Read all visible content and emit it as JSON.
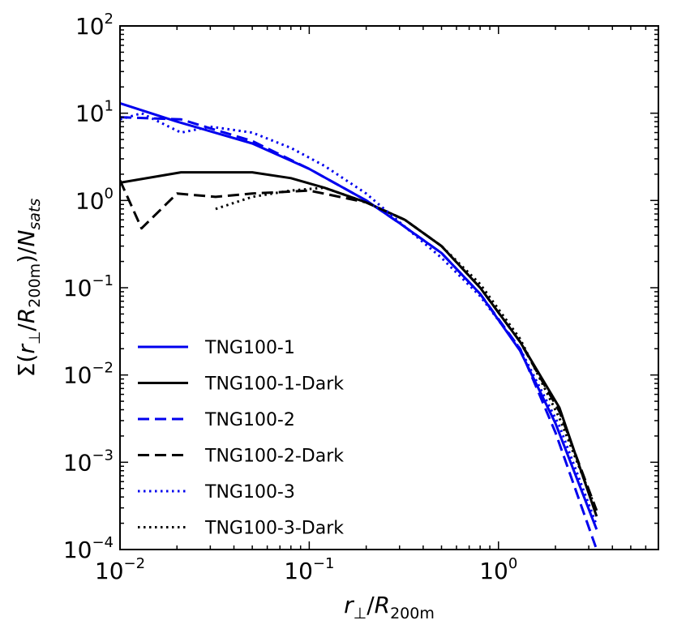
{
  "chart_data": {
    "type": "line",
    "xscale": "log",
    "yscale": "log",
    "xlim": [
      0.01,
      7
    ],
    "ylim": [
      0.0001,
      100
    ],
    "xlabel": {
      "base": "r",
      "sub1": "⊥",
      "slash": "/",
      "r": "R",
      "sub2": "200m"
    },
    "ylabel": {
      "sigma": "Σ(",
      "r": "r",
      "sub1": "⊥",
      "slash": "/",
      "R": "R",
      "sub2": "200m",
      "close": ")/",
      "N": "N",
      "sub3": "sats"
    },
    "x_ticks": [
      {
        "value": 0.01,
        "base": "10",
        "exp": "−2"
      },
      {
        "value": 0.1,
        "base": "10",
        "exp": "−1"
      },
      {
        "value": 1,
        "base": "10",
        "exp": "0"
      }
    ],
    "y_ticks": [
      {
        "value": 0.0001,
        "base": "10",
        "exp": "−4"
      },
      {
        "value": 0.001,
        "base": "10",
        "exp": "−3"
      },
      {
        "value": 0.01,
        "base": "10",
        "exp": "−2"
      },
      {
        "value": 0.1,
        "base": "10",
        "exp": "−1"
      },
      {
        "value": 1,
        "base": "10",
        "exp": "0"
      },
      {
        "value": 10,
        "base": "10",
        "exp": "1"
      },
      {
        "value": 100,
        "base": "10",
        "exp": "2"
      }
    ],
    "grid": false,
    "legend_position": "lower-left",
    "series": [
      {
        "name": "TNG100-1",
        "color": "#0000ee",
        "dash": "solid",
        "x": [
          0.01,
          0.02,
          0.05,
          0.1,
          0.2,
          0.3,
          0.5,
          0.8,
          1.3,
          2.0,
          3.3
        ],
        "y": [
          13,
          8,
          4.5,
          2.3,
          1.0,
          0.55,
          0.25,
          0.085,
          0.019,
          0.0028,
          0.00017
        ]
      },
      {
        "name": "TNG100-1-Dark",
        "color": "#000000",
        "dash": "solid",
        "x": [
          0.01,
          0.021,
          0.05,
          0.08,
          0.12,
          0.2,
          0.32,
          0.5,
          0.8,
          1.3,
          2.1,
          3.3
        ],
        "y": [
          1.6,
          2.1,
          2.1,
          1.8,
          1.4,
          0.95,
          0.6,
          0.3,
          0.1,
          0.024,
          0.0042,
          0.00024
        ]
      },
      {
        "name": "TNG100-2",
        "color": "#0000ee",
        "dash": "dashed",
        "x": [
          0.01,
          0.021,
          0.05,
          0.1,
          0.2,
          0.3,
          0.5,
          0.8,
          1.3,
          2.0,
          3.3
        ],
        "y": [
          9,
          8.5,
          4.8,
          2.3,
          1.0,
          0.55,
          0.25,
          0.085,
          0.02,
          0.0022,
          0.0001
        ]
      },
      {
        "name": "TNG100-2-Dark",
        "color": "#000000",
        "dash": "dashed",
        "x": [
          0.01,
          0.013,
          0.02,
          0.032,
          0.05,
          0.1,
          0.2,
          0.32,
          0.5,
          0.8,
          1.3,
          2.1,
          3.3
        ],
        "y": [
          1.7,
          0.48,
          1.2,
          1.1,
          1.2,
          1.3,
          0.95,
          0.6,
          0.3,
          0.1,
          0.024,
          0.0038,
          0.00028
        ]
      },
      {
        "name": "TNG100-3",
        "color": "#0000ee",
        "dash": "dotted",
        "x": [
          0.01,
          0.013,
          0.021,
          0.03,
          0.05,
          0.08,
          0.12,
          0.2,
          0.32,
          0.5,
          0.8,
          1.3,
          2.1,
          3.3
        ],
        "y": [
          8.5,
          10,
          6,
          7,
          6,
          4,
          2.5,
          1.2,
          0.5,
          0.22,
          0.08,
          0.02,
          0.0026,
          0.00019
        ]
      },
      {
        "name": "TNG100-3-Dark",
        "color": "#000000",
        "dash": "dotted",
        "x": [
          0.032,
          0.05,
          0.08,
          0.12,
          0.2,
          0.32,
          0.5,
          0.8,
          1.3,
          2.1,
          3.3
        ],
        "y": [
          0.8,
          1.1,
          1.3,
          1.4,
          0.95,
          0.6,
          0.3,
          0.11,
          0.026,
          0.0032,
          0.00028
        ]
      }
    ]
  }
}
